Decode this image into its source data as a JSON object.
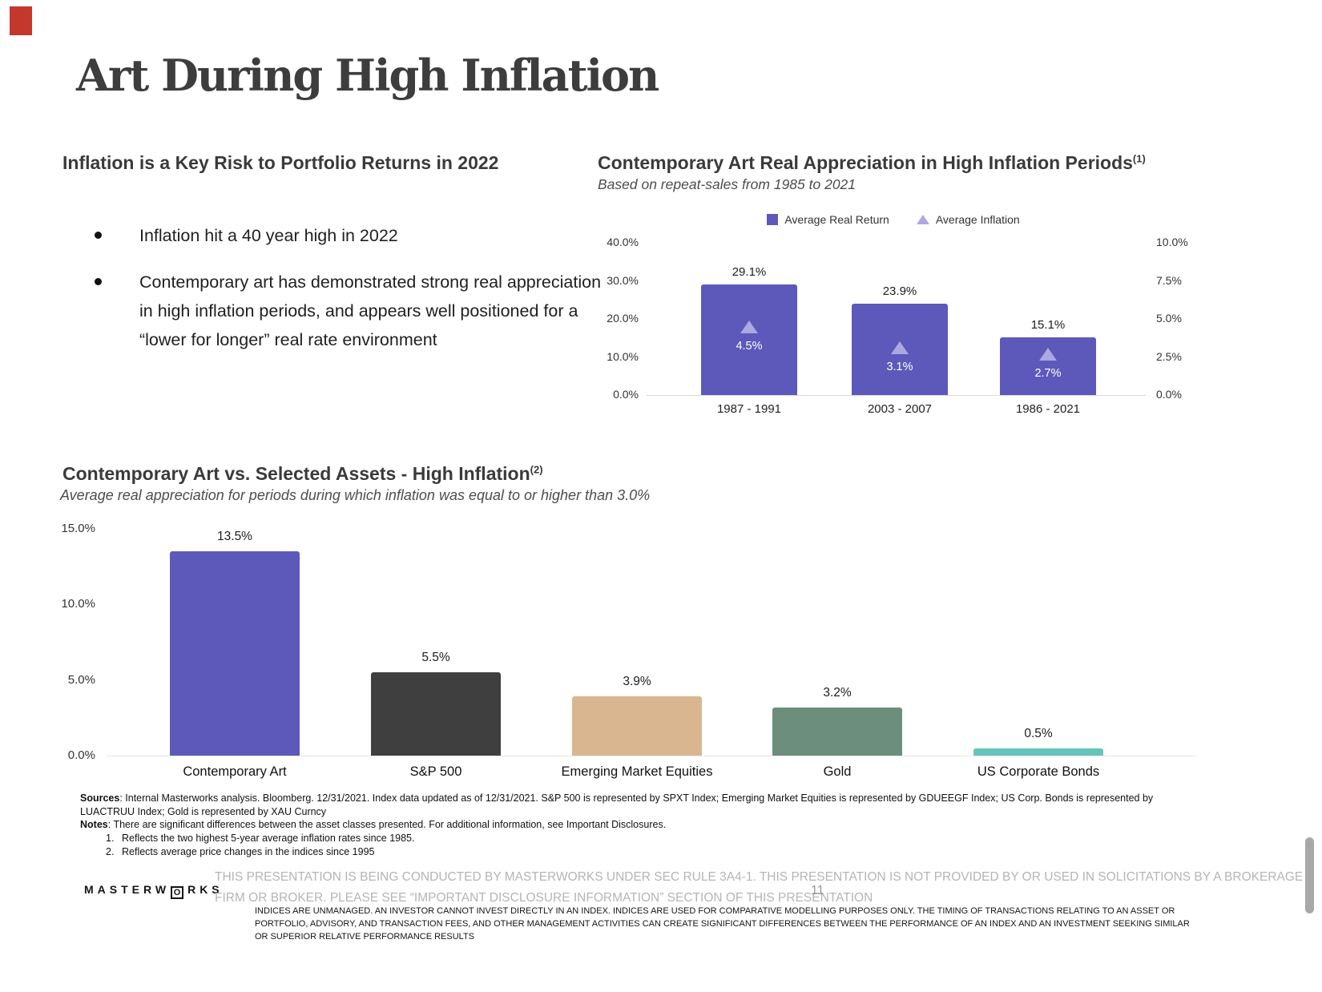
{
  "slide": {
    "title": "Art During High Inflation",
    "page_number": "11"
  },
  "left_section": {
    "heading": "Inflation is a Key Risk to Portfolio Returns in 2022",
    "bullets": [
      "Inflation hit a 40 year high in 2022",
      "Contemporary art has demonstrated strong real appreciation in high inflation periods, and appears well positioned for a “lower for longer” real rate environment"
    ]
  },
  "chart_data": [
    {
      "type": "bar",
      "title": "Contemporary Art Real Appreciation in High Inflation Periods",
      "title_superscript": "(1)",
      "subtitle": "Based on repeat-sales from 1985 to 2021",
      "categories": [
        "1987 - 1991",
        "2003 - 2007",
        "1986 - 2021"
      ],
      "series": [
        {
          "name": "Average Real Return",
          "marker": "bar",
          "axis": "left",
          "color": "#5d59ba",
          "values": [
            29.1,
            23.9,
            15.1
          ],
          "labels": [
            "29.1%",
            "23.9%",
            "15.1%"
          ]
        },
        {
          "name": "Average Inflation",
          "marker": "triangle",
          "axis": "right",
          "color": "#aba8e2",
          "values": [
            4.5,
            3.1,
            2.7
          ],
          "labels": [
            "4.5%",
            "3.1%",
            "2.7%"
          ]
        }
      ],
      "left_axis": {
        "max": 40,
        "ticks": [
          40,
          30,
          20,
          10,
          0
        ],
        "tick_labels": [
          "40.0%",
          "30.0%",
          "20.0%",
          "10.0%",
          "0.0%"
        ]
      },
      "right_axis": {
        "max": 10,
        "ticks": [
          10,
          7.5,
          5,
          2.5,
          0
        ],
        "tick_labels": [
          "10.0%",
          "7.5%",
          "5.0%",
          "2.5%",
          "0.0%"
        ]
      },
      "legend_position": "top",
      "grid": false
    },
    {
      "type": "bar",
      "title": "Contemporary Art vs. Selected Assets - High Inflation",
      "title_superscript": "(2)",
      "subtitle": "Average real appreciation for periods during which inflation was equal to or higher than 3.0%",
      "categories": [
        "Contemporary Art",
        "S&P 500",
        "Emerging Market Equities",
        "Gold",
        "US Corporate Bonds"
      ],
      "values": [
        13.5,
        5.5,
        3.9,
        3.2,
        0.5
      ],
      "value_labels": [
        "13.5%",
        "5.5%",
        "3.9%",
        "3.2%",
        "0.5%"
      ],
      "bar_colors": [
        "#5d59ba",
        "#3f3f3f",
        "#d9b68f",
        "#6b8f7c",
        "#63c6b9"
      ],
      "y_axis": {
        "max": 15,
        "ticks": [
          15,
          10,
          5,
          0
        ],
        "tick_labels": [
          "15.0%",
          "10.0%",
          "5.0%",
          "0.0%"
        ]
      },
      "legend_position": "none",
      "grid": false
    }
  ],
  "footer": {
    "sources_label": "Sources",
    "sources_text": ": Internal Masterworks analysis. Bloomberg. 12/31/2021. Index data updated as of 12/31/2021. S&P 500 is represented by SPXT Index; Emerging Market Equities is represented by GDUEEGF Index; US Corp. Bonds is represented by LUACTRUU Index; Gold is represented by XAU Curncy",
    "notes_label": "Notes",
    "notes_text": ": There are significant differences between the asset classes presented. For additional information, see Important Disclosures.",
    "footnotes": [
      {
        "num": "1.",
        "text": "Reflects the two highest 5-year average inflation rates since 1985."
      },
      {
        "num": "2.",
        "text": "Reflects average price changes in the indices since 1995"
      }
    ],
    "logo": {
      "pre": "MASTERW",
      "boxed": "O",
      "post": "RKS"
    },
    "disclaimer_gray": "THIS PRESENTATION  IS BEING CONDUCTED BY MASTERWORKS UNDER SEC RULE 3A4-1. THIS PRESENTATION  IS NOT PROVIDED BY OR USED IN SOLICITATIONS BY A BROKERAGE FIRM OR BROKER. PLEASE SEE “IMPORTANT DISCLOSURE INFORMATION” SECTION OF THIS PRESENTATION",
    "disclaimer_black": "INDICES ARE UNMANAGED. AN INVESTOR CANNOT INVEST DIRECTLY IN AN INDEX. INDICES ARE USED FOR COMPARATIVE MODELLING PURPOSES ONLY. THE TIMING OF TRANSACTIONS RELATING TO AN ASSET OR PORTFOLIO, ADVISORY, AND TRANSACTION FEES, AND OTHER MANAGEMENT ACTIVITIES CAN CREATE SIGNIFICANT DIFFERENCES BETWEEN THE PERFORMANCE OF AN INDEX AND AN INVESTMENT SEEKING SIMILAR OR SUPERIOR RELATIVE PERFORMANCE RESULTS"
  }
}
